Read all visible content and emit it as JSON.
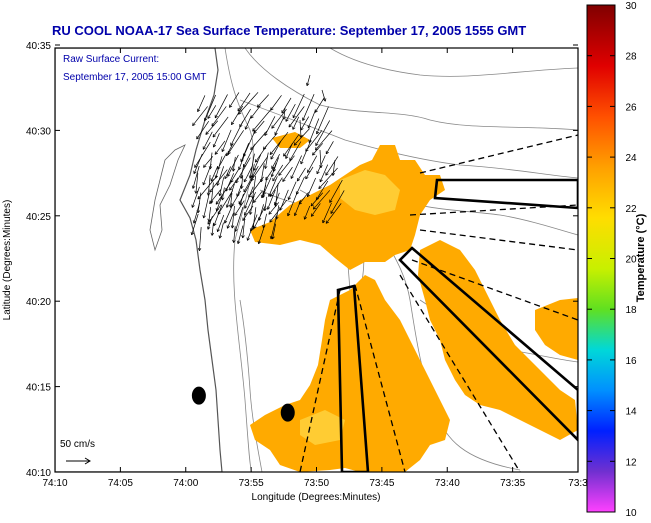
{
  "chart_data": {
    "type": "heatmap",
    "title": "RU COOL  NOAA-17  Sea Surface Temperature:  September 17, 2005 1555 GMT",
    "subtitle_lines": [
      "Raw Surface Current:",
      "September 17, 2005 15:00 GMT"
    ],
    "xlabel": "Longitude (Degrees:Minutes)",
    "ylabel": "Latitude (Degrees:Minutes)",
    "x_ticks": [
      "74:10",
      "74:05",
      "74:00",
      "73:55",
      "73:50",
      "73:45",
      "73:40",
      "73:35",
      "73:3"
    ],
    "y_ticks": [
      "40:35",
      "40:30",
      "40:25",
      "40:20",
      "40:15",
      "40:10"
    ],
    "xlim_min": [
      -74.1667,
      -73.5
    ],
    "ylim_min": [
      40.1667,
      40.5833
    ],
    "scale_label": "50 cm/s",
    "colorbar": {
      "label": "Temperature (°C)",
      "ticks": [
        "30",
        "28",
        "26",
        "24",
        "22",
        "20",
        "18",
        "16",
        "14",
        "12",
        "10"
      ],
      "range": [
        10,
        30
      ]
    },
    "sst_patch_temperature_c": 24.5,
    "stations": [
      {
        "lon": -73.9833,
        "lat": 40.2417
      },
      {
        "lon": -73.87,
        "lat": 40.225
      }
    ],
    "colors": {
      "title": "#0000aa",
      "sst_patch": "#ffaa00",
      "sst_patch_light": "#ffcc33",
      "land": "#ffffff",
      "frame": "#000000"
    }
  }
}
